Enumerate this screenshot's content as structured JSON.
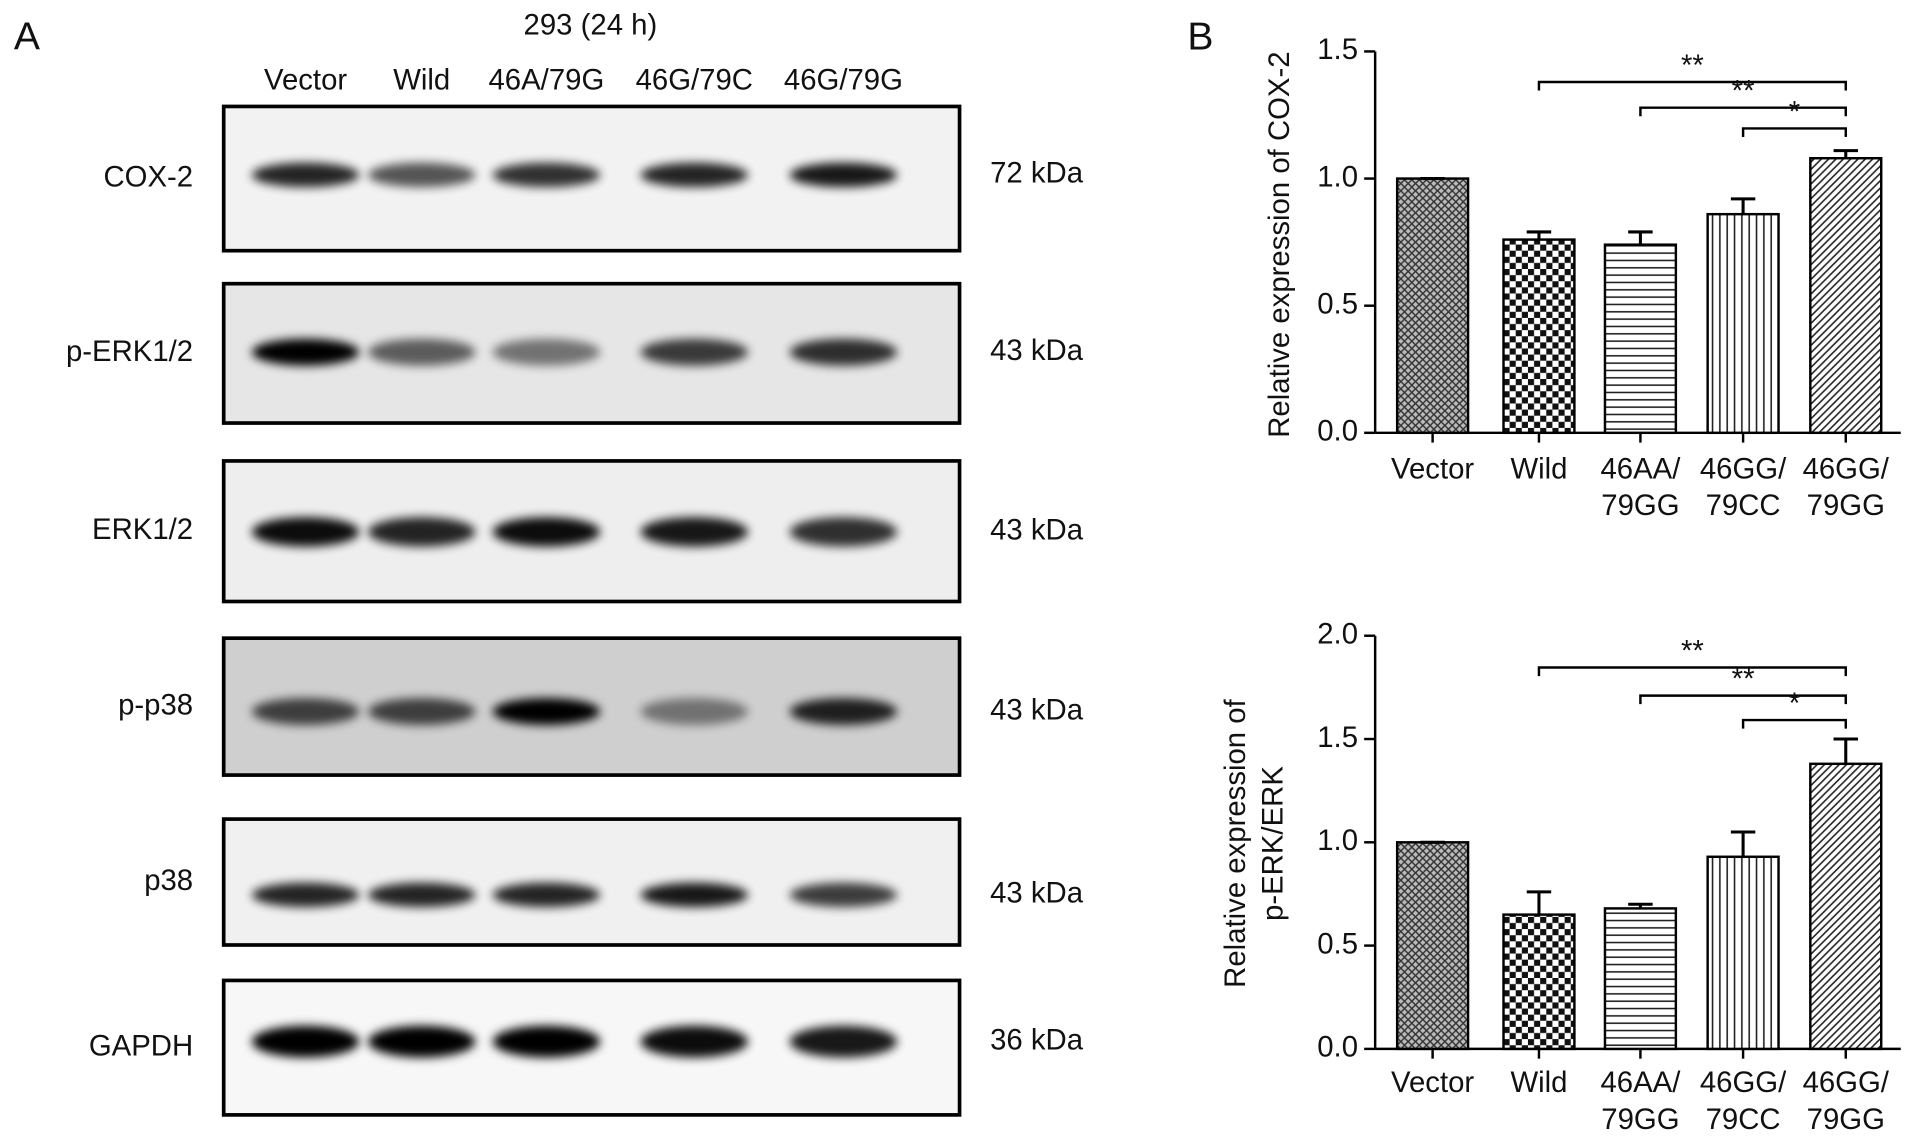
{
  "panel_a": {
    "label": "A",
    "title": "293 (24 h)",
    "lanes": [
      "Vector",
      "Wild",
      "46A/79G",
      "46G/79C",
      "46G/79G"
    ],
    "rows": [
      {
        "protein": "COX-2",
        "size": "72 kDa"
      },
      {
        "protein": "p-ERK1/2",
        "size": "43 kDa"
      },
      {
        "protein": "ERK1/2",
        "size": "43 kDa"
      },
      {
        "protein": "p-p38",
        "size": "43 kDa"
      },
      {
        "protein": "p38",
        "size": "43 kDa"
      },
      {
        "protein": "GAPDH",
        "size": "36 kDa"
      }
    ]
  },
  "panel_b": {
    "label": "B"
  },
  "chart_data": [
    {
      "type": "bar",
      "ylabel": [
        "Relative expression of COX-2"
      ],
      "categories": [
        [
          "Vector"
        ],
        [
          "Wild"
        ],
        [
          "46AA/",
          "79GG"
        ],
        [
          "46GG/",
          "79CC"
        ],
        [
          "46GG/",
          "79GG"
        ]
      ],
      "values": [
        1.0,
        0.76,
        0.74,
        0.86,
        1.08
      ],
      "errors": [
        0,
        0.03,
        0.05,
        0.06,
        0.03
      ],
      "patterns": [
        "crosshatch",
        "checker",
        "horizontal",
        "vertical",
        "diagonal"
      ],
      "ylim": [
        0,
        1.5
      ],
      "yticks": [
        {
          "value": 0,
          "label": "0.0"
        },
        {
          "value": 0.5,
          "label": "0.5"
        },
        {
          "value": 1,
          "label": "1.0"
        },
        {
          "value": 1.5,
          "label": "1.5"
        }
      ],
      "annotations": [
        {
          "from": 1,
          "to": 4,
          "label": "**"
        },
        {
          "from": 2,
          "to": 4,
          "label": "**"
        },
        {
          "from": 3,
          "to": 4,
          "label": "*"
        }
      ]
    },
    {
      "type": "bar",
      "ylabel": [
        "Relative expression of",
        "p-ERK/ERK"
      ],
      "categories": [
        [
          "Vector"
        ],
        [
          "Wild"
        ],
        [
          "46AA/",
          "79GG"
        ],
        [
          "46GG/",
          "79CC"
        ],
        [
          "46GG/",
          "79GG"
        ]
      ],
      "values": [
        1.0,
        0.65,
        0.68,
        0.93,
        1.38
      ],
      "errors": [
        0,
        0.11,
        0.02,
        0.12,
        0.12
      ],
      "patterns": [
        "crosshatch",
        "checker",
        "horizontal",
        "vertical",
        "diagonal"
      ],
      "ylim": [
        0,
        2
      ],
      "yticks": [
        {
          "value": 0,
          "label": "0.0"
        },
        {
          "value": 0.5,
          "label": "0.5"
        },
        {
          "value": 1,
          "label": "1.0"
        },
        {
          "value": 1.5,
          "label": "1.5"
        },
        {
          "value": 2,
          "label": "2.0"
        }
      ],
      "annotations": [
        {
          "from": 1,
          "to": 4,
          "label": "**"
        },
        {
          "from": 2,
          "to": 4,
          "label": "**"
        },
        {
          "from": 3,
          "to": 4,
          "label": "*"
        }
      ]
    }
  ]
}
